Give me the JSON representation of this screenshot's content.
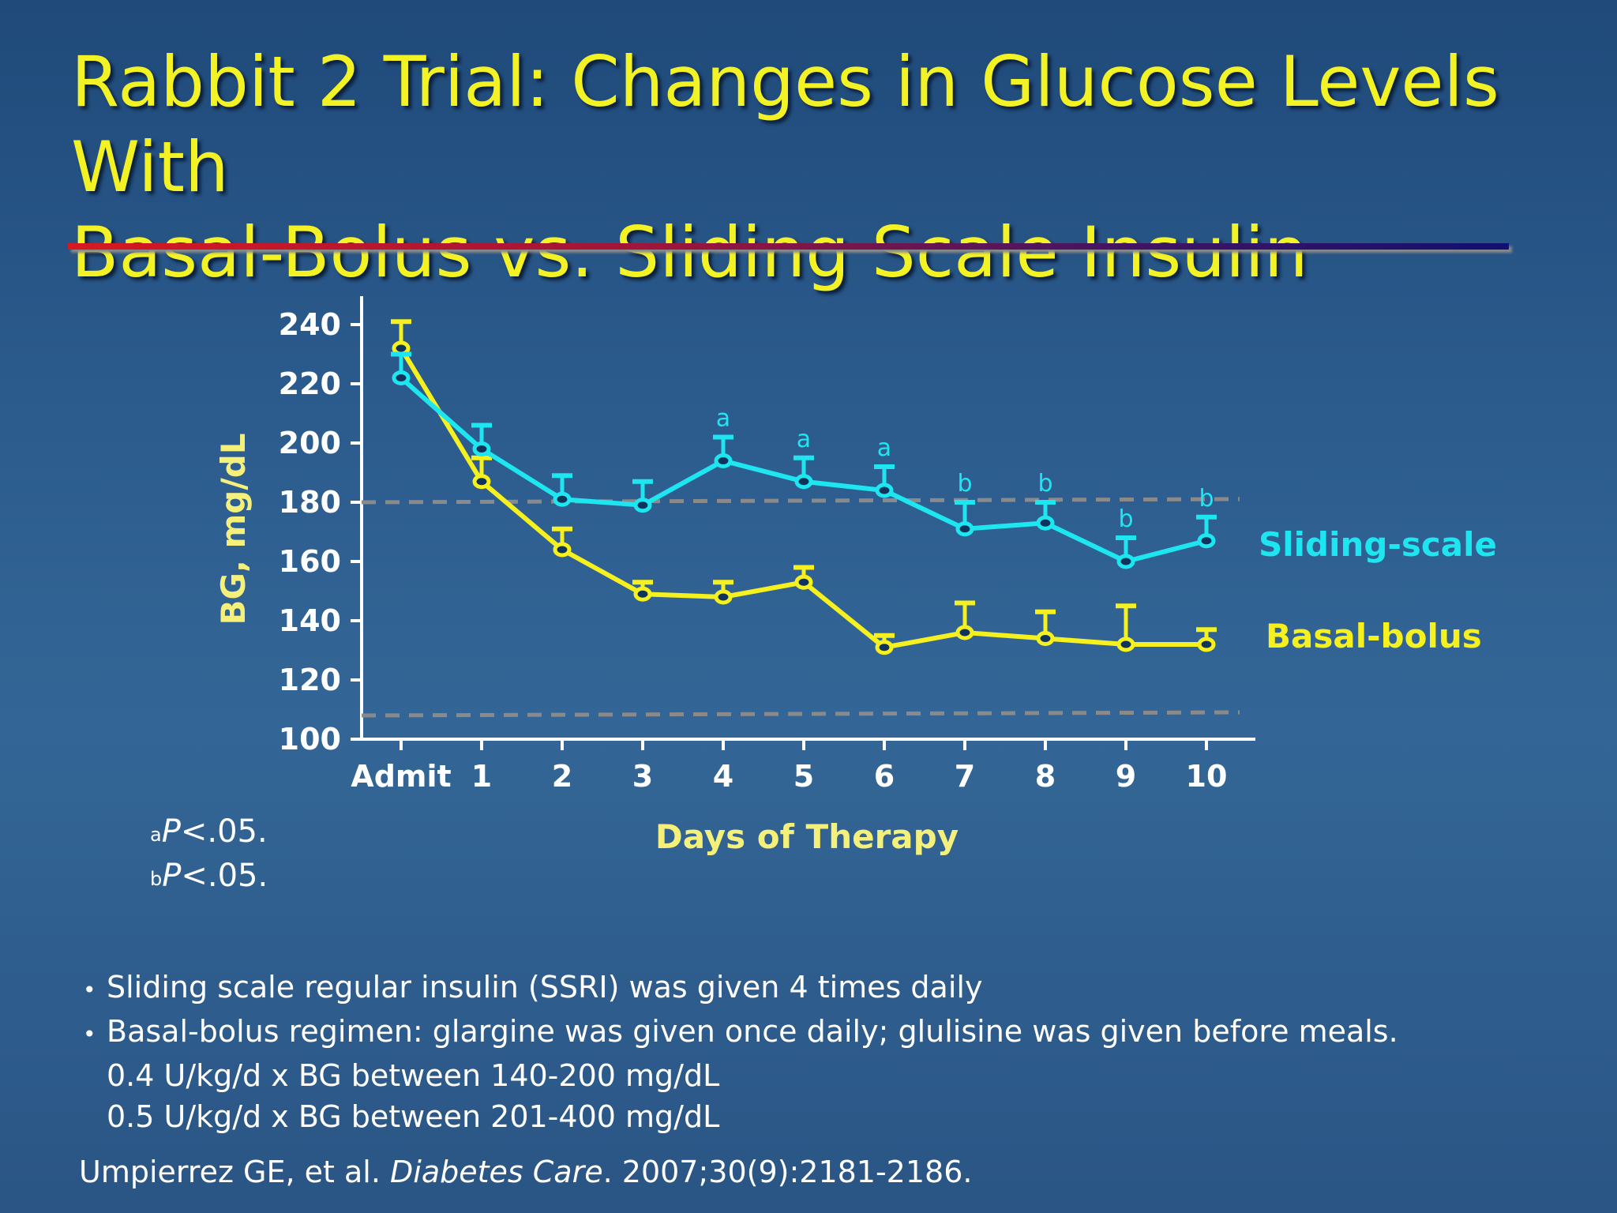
{
  "title": {
    "line1": "Rabbit 2 Trial: Changes in Glucose Levels With",
    "line2": "Basal-Bolus vs. Sliding Scale Insulin"
  },
  "colors": {
    "title": "#f2f224",
    "sliding_scale": "#1ee6f0",
    "basal_bolus": "#f5f01e",
    "reference_lines": "#8a8a8a"
  },
  "chart_data": {
    "type": "line",
    "ylabel": "BG, mg/dL",
    "xlabel": "Days of Therapy",
    "categories": [
      "Admit",
      "1",
      "2",
      "3",
      "4",
      "5",
      "6",
      "7",
      "8",
      "9",
      "10"
    ],
    "yticks": [
      100,
      120,
      140,
      160,
      180,
      200,
      220,
      240
    ],
    "ylim": [
      100,
      250
    ],
    "series": [
      {
        "name": "Sliding-scale",
        "values": [
          222,
          198,
          181,
          179,
          194,
          187,
          184,
          171,
          173,
          160,
          167
        ],
        "error_upper": [
          230,
          206,
          189,
          187,
          202,
          195,
          192,
          180,
          180,
          168,
          175
        ],
        "significance": [
          "",
          "",
          "",
          "",
          "a",
          "a",
          "a",
          "b",
          "b",
          "b",
          "b"
        ]
      },
      {
        "name": "Basal-bolus",
        "values": [
          232,
          187,
          164,
          149,
          148,
          153,
          131,
          136,
          134,
          132,
          132
        ],
        "error_upper": [
          241,
          195,
          171,
          153,
          153,
          158,
          135,
          146,
          143,
          145,
          137
        ],
        "significance": [
          "",
          "",
          "",
          "",
          "",
          "",
          "",
          "",
          "",
          "",
          ""
        ]
      }
    ],
    "reference_lines": [
      180,
      108
    ],
    "grid": false,
    "legend": "right, labels beside series ends"
  },
  "footnotes": {
    "a": {
      "sup": "a",
      "p": "P",
      "rest": "<.05."
    },
    "b": {
      "sup": "b",
      "p": "P",
      "rest": "<.05."
    }
  },
  "bullets": {
    "item1": "Sliding scale regular insulin (SSRI) was given 4 times daily",
    "item2": "Basal-bolus regimen: glargine was given once daily; glulisine was given before meals.",
    "sub1": "0.4 U/kg/d x BG between 140-200 mg/dL",
    "sub2": "0.5 U/kg/d x BG between 201-400 mg/dL",
    "bullet_char": "•"
  },
  "citation": {
    "authors": "Umpierrez GE, et al. ",
    "journal": "Diabetes Care",
    "rest": ". 2007;30(9):2181-2186."
  }
}
